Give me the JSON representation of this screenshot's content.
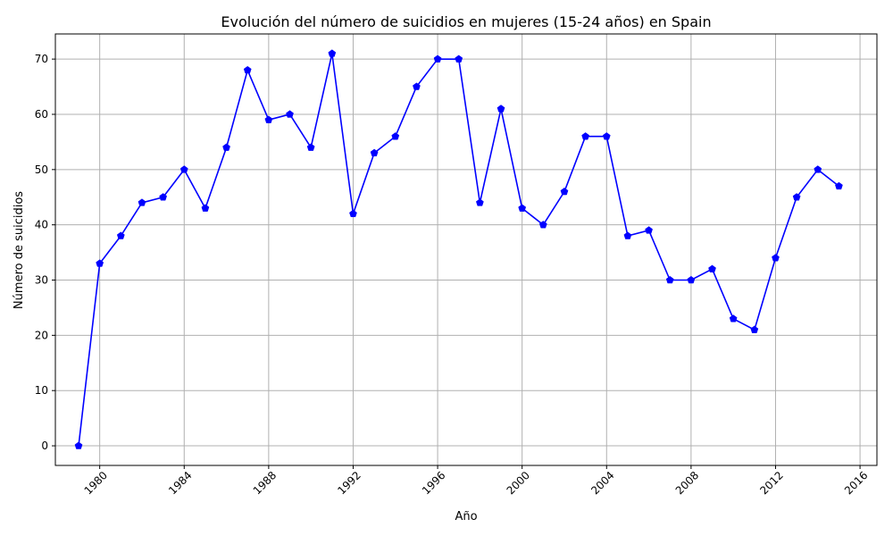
{
  "chart_data": {
    "type": "line",
    "title": "Evolución del número de suicidios en mujeres (15-24 años) en Spain",
    "xlabel": "Año",
    "ylabel": "Número de suicidios",
    "xlim": [
      1977.9,
      2016.8
    ],
    "ylim": [
      -3.55,
      74.55
    ],
    "x_ticks": [
      1980,
      1984,
      1988,
      1992,
      1996,
      2000,
      2004,
      2008,
      2012,
      2016
    ],
    "y_ticks": [
      0,
      10,
      20,
      30,
      40,
      50,
      60,
      70
    ],
    "grid": true,
    "line_color": "#0000ff",
    "series": [
      {
        "x": [
          1979,
          1980,
          1981,
          1982,
          1983,
          1984,
          1985,
          1986,
          1987,
          1988,
          1989,
          1990,
          1991,
          1992,
          1993,
          1994,
          1995,
          1996,
          1997,
          1998,
          1999,
          2000,
          2001,
          2002,
          2003,
          2004,
          2005,
          2006,
          2007,
          2008,
          2009,
          2010,
          2011,
          2012,
          2013,
          2014,
          2015
        ],
        "values": [
          0,
          33,
          38,
          44,
          45,
          50,
          43,
          54,
          68,
          59,
          60,
          54,
          71,
          42,
          53,
          56,
          65,
          70,
          70,
          44,
          61,
          43,
          40,
          46,
          56,
          56,
          38,
          39,
          30,
          30,
          32,
          23,
          21,
          34,
          45,
          50,
          47
        ]
      }
    ]
  }
}
